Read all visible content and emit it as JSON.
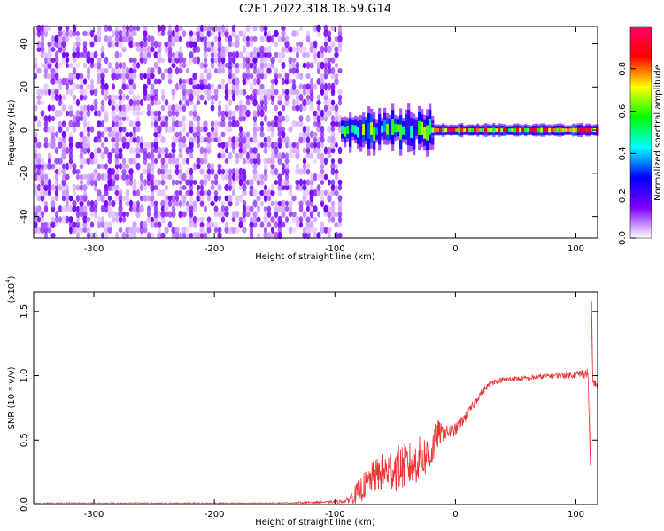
{
  "figure": {
    "title": "C2E1.2022.318.18.59.G14"
  },
  "chart_data": [
    {
      "type": "heatmap",
      "xlabel": "Height of straight line (km)",
      "ylabel": "Frequency (Hz)",
      "xlim": [
        -350,
        118
      ],
      "ylim": [
        -50,
        48
      ],
      "x_ticks": [
        -300,
        -200,
        -100,
        0,
        100
      ],
      "x_tick_labels": [
        "-300",
        "-200",
        "-100",
        "0",
        "100"
      ],
      "y_ticks": [
        -40,
        -20,
        0,
        20,
        40
      ],
      "y_tick_labels": [
        "-40",
        "-20",
        "0",
        "20",
        "40"
      ],
      "colorbar": {
        "label": "Normalized spectral amplitude",
        "range": [
          0,
          1
        ],
        "ticks": [
          0.0,
          0.2,
          0.4,
          0.6,
          0.8
        ],
        "tick_labels": [
          "0.0",
          "0.2",
          "0.4",
          "0.6",
          "0.8"
        ],
        "colormap": [
          "#ffffff",
          "#8000ff",
          "#0000ff",
          "#00ffff",
          "#00ff00",
          "#ffff00",
          "#ff0000",
          "#ff0066"
        ]
      },
      "regions": [
        {
          "x_range": [
            -350,
            -95
          ],
          "freq_range": [
            -50,
            48
          ],
          "amplitude": [
            0.02,
            0.15
          ]
        },
        {
          "x_range": [
            -95,
            -20
          ],
          "freq_center": 0,
          "freq_halfwidth": 6,
          "amplitude": [
            0.2,
            0.7
          ]
        },
        {
          "x_range": [
            -20,
            118
          ],
          "freq_center": 0,
          "freq_halfwidth": 2,
          "amplitude": [
            0.5,
            1.0
          ]
        }
      ],
      "grid": false
    },
    {
      "type": "line",
      "xlabel": "Height of straight line (km)",
      "ylabel": "SNR (10 * v/v)",
      "y_multiplier_label": "(x10",
      "y_multiplier_exp": "4",
      "xlim": [
        -350,
        118
      ],
      "ylim": [
        0,
        1.65
      ],
      "x_ticks": [
        -300,
        -200,
        -100,
        0,
        100
      ],
      "x_tick_labels": [
        "-300",
        "-200",
        "-100",
        "0",
        "100"
      ],
      "y_ticks": [
        0.0,
        0.5,
        1.0,
        1.5
      ],
      "y_tick_labels": [
        "0.0",
        "0.5",
        "1.0",
        "1.5"
      ],
      "series_color": "#ee3333",
      "x": [
        -350,
        -300,
        -250,
        -200,
        -150,
        -100,
        -90,
        -80,
        -70,
        -60,
        -50,
        -40,
        -30,
        -20,
        -15,
        -10,
        0,
        10,
        20,
        30,
        40,
        60,
        80,
        100,
        110,
        112,
        113,
        114,
        118
      ],
      "y": [
        0.01,
        0.01,
        0.01,
        0.01,
        0.01,
        0.02,
        0.03,
        0.1,
        0.2,
        0.25,
        0.28,
        0.3,
        0.35,
        0.4,
        0.55,
        0.55,
        0.58,
        0.7,
        0.85,
        0.95,
        0.97,
        0.98,
        1.0,
        1.01,
        1.02,
        0.3,
        1.6,
        0.95,
        0.92
      ],
      "noise": [
        0.005,
        0.005,
        0.005,
        0.005,
        0.005,
        0.01,
        0.02,
        0.1,
        0.12,
        0.15,
        0.18,
        0.18,
        0.18,
        0.15,
        0.12,
        0.06,
        0.05,
        0.04,
        0.03,
        0.02,
        0.02,
        0.02,
        0.02,
        0.03,
        0.04,
        0.0,
        0.0,
        0.03,
        0.02
      ],
      "grid": false
    }
  ]
}
